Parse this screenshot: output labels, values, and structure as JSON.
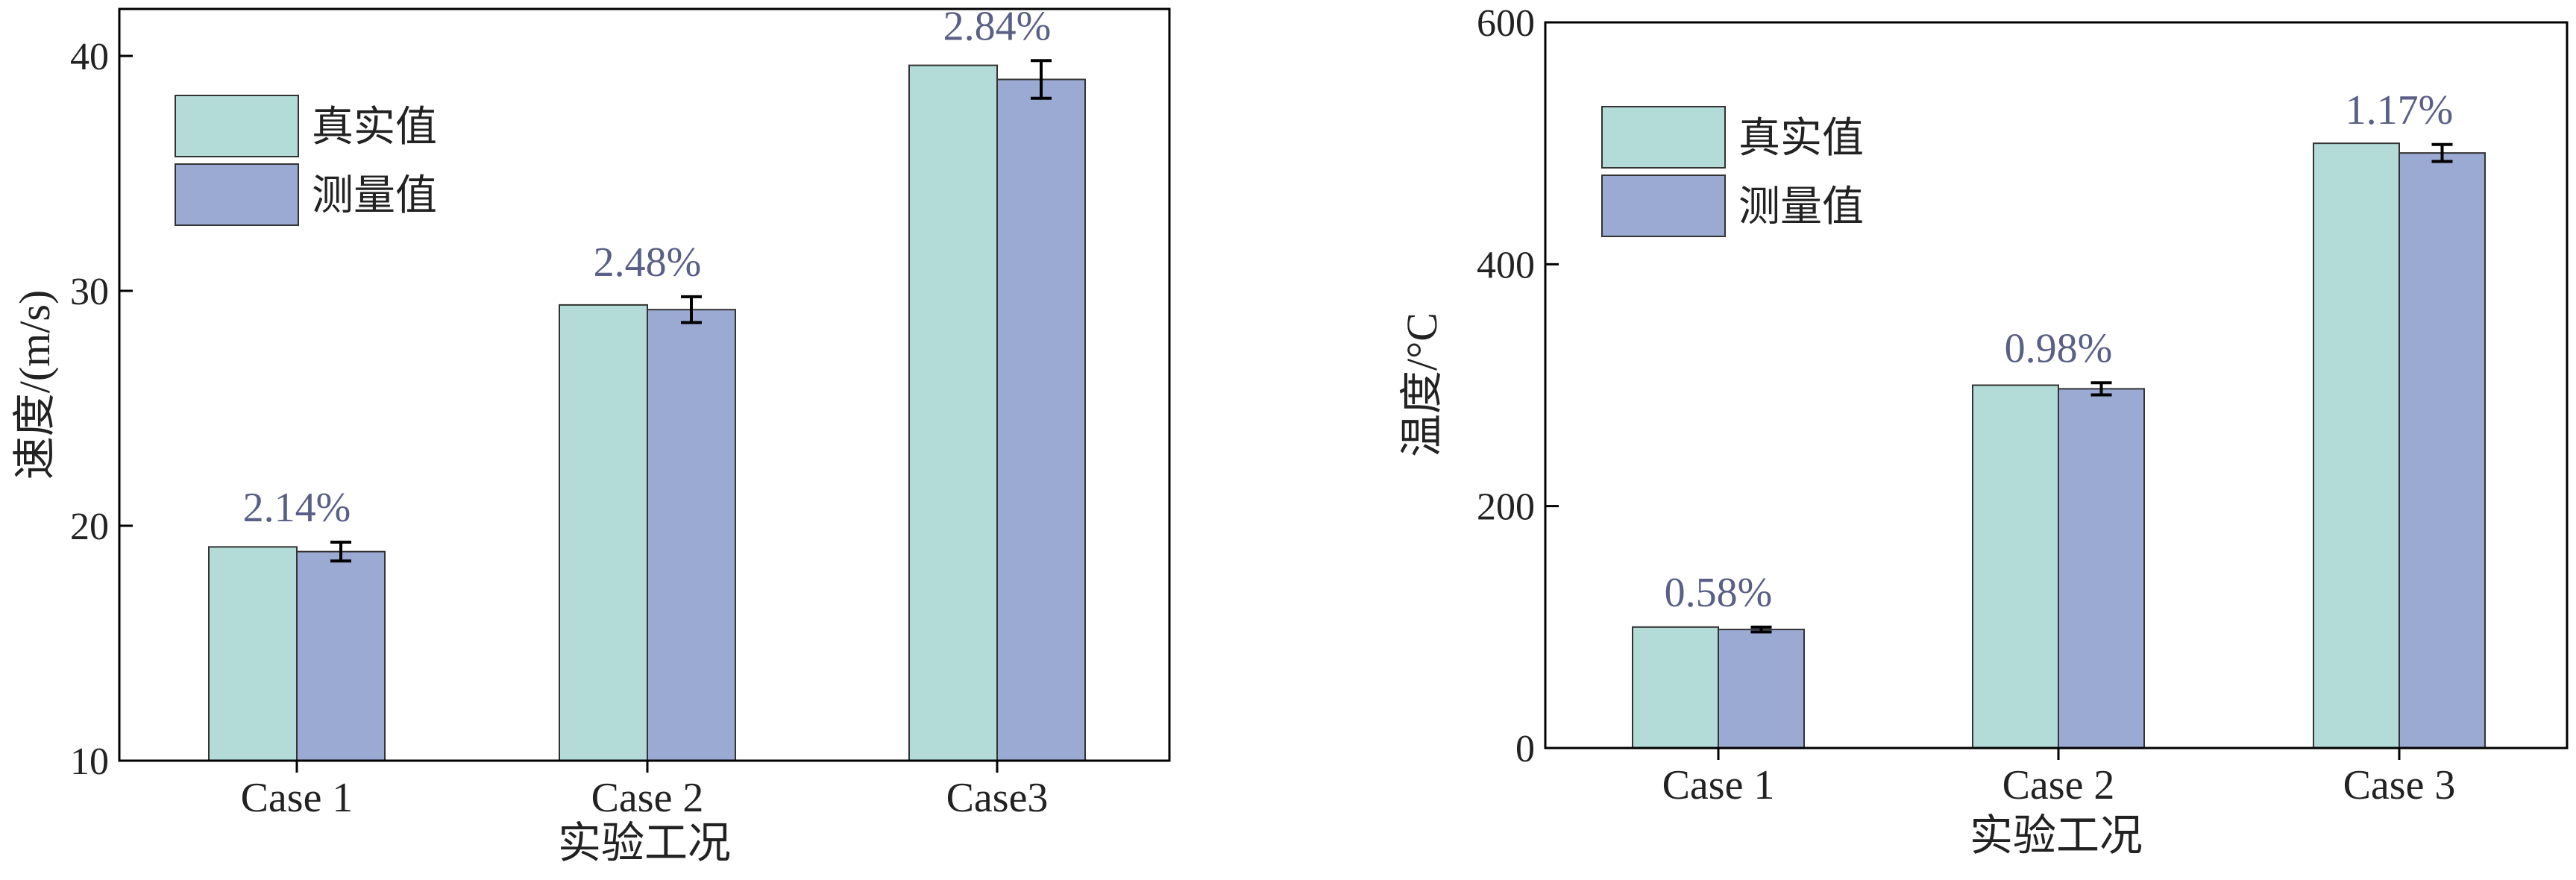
{
  "chart_data": [
    {
      "type": "bar",
      "categories": [
        "Case 1",
        "Case 2",
        "Case3"
      ],
      "series": [
        {
          "name": "真实值",
          "values": [
            19.1,
            29.4,
            39.6
          ]
        },
        {
          "name": "测量值",
          "values": [
            18.9,
            29.2,
            39.0
          ],
          "error": [
            0.4,
            0.55,
            0.8
          ]
        }
      ],
      "data_labels": [
        "2.14%",
        "2.48%",
        "2.84%"
      ],
      "xlabel": "实验工况",
      "ylabel": "速度/(m/s)",
      "ylim": [
        10,
        42
      ],
      "yticks": [
        10,
        20,
        30,
        40
      ],
      "legend_position": "top-left"
    },
    {
      "type": "bar",
      "categories": [
        "Case 1",
        "Case 2",
        "Case 3"
      ],
      "series": [
        {
          "name": "真实值",
          "values": [
            100,
            300,
            500
          ]
        },
        {
          "name": "测量值",
          "values": [
            98,
            297,
            492
          ],
          "error": [
            2,
            5,
            7
          ]
        }
      ],
      "data_labels": [
        "0.58%",
        "0.98%",
        "1.17%"
      ],
      "xlabel": "实验工况",
      "ylabel": "温度/°C",
      "ylim": [
        0,
        600
      ],
      "yticks": [
        0,
        200,
        400,
        600
      ],
      "legend_position": "top-left"
    }
  ],
  "colors": {
    "true_value": "#b3dcd9",
    "measured_value": "#9aaad2",
    "data_label": "#5a5f87"
  }
}
